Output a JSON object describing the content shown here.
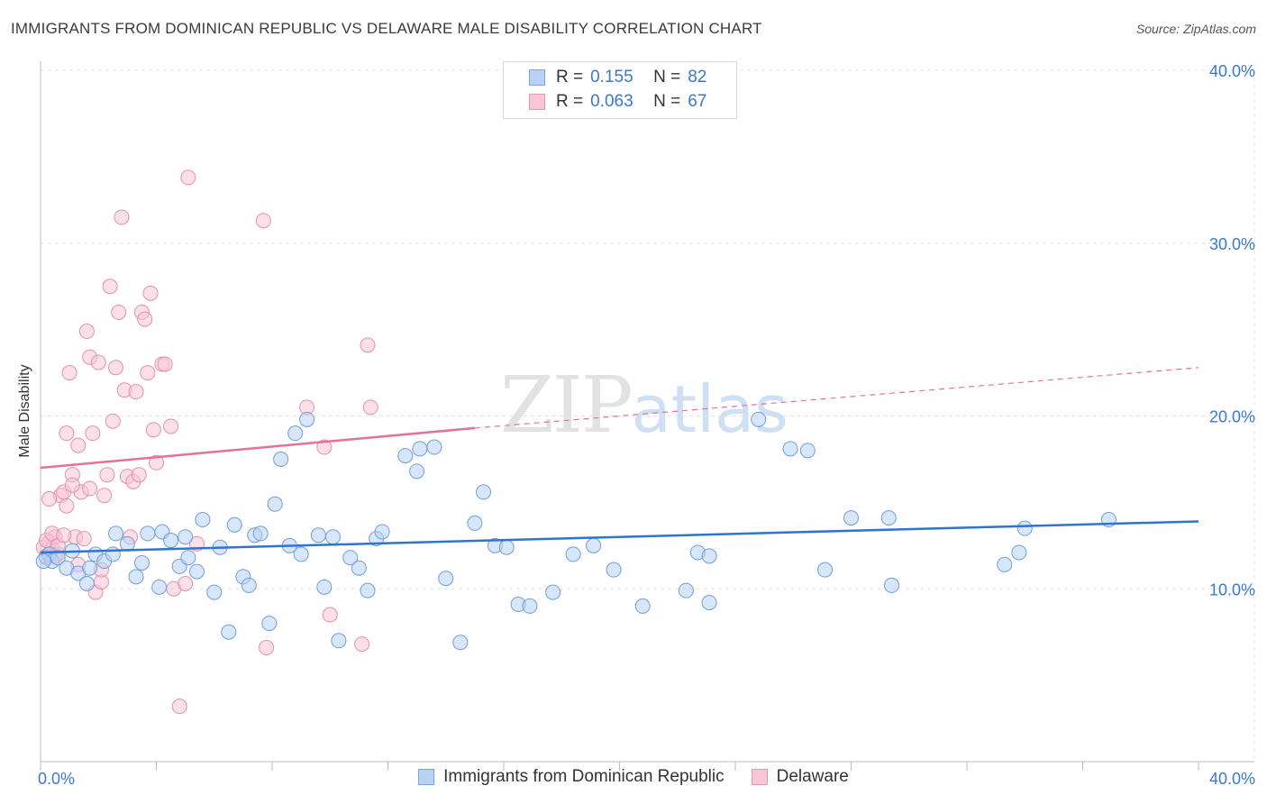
{
  "title": "IMMIGRANTS FROM DOMINICAN REPUBLIC VS DELAWARE MALE DISABILITY CORRELATION CHART",
  "source": "Source: ZipAtlas.com",
  "watermark": {
    "part1": "ZIP",
    "part2": "atlas"
  },
  "legend": {
    "rows": [
      {
        "r_label": "R =",
        "r_value": "0.155",
        "n_label": "N =",
        "n_value": "82"
      },
      {
        "r_label": "R =",
        "r_value": "0.063",
        "n_label": "N =",
        "n_value": "67"
      }
    ]
  },
  "bottom_legend": {
    "series1": "Immigrants from Dominican Republic",
    "series2": "Delaware"
  },
  "colors": {
    "blue_fill": "#b8d2f5",
    "blue_stroke": "#6f9ed8",
    "blue_line": "#2f74cf",
    "pink_fill": "#f8c6d6",
    "pink_stroke": "#e58fae",
    "pink_line": "#e5719a",
    "tick_text": "#3a78d0"
  },
  "chart_data": {
    "type": "scatter",
    "title": "IMMIGRANTS FROM DOMINICAN REPUBLIC VS DELAWARE MALE DISABILITY CORRELATION CHART",
    "xlabel": "",
    "ylabel": "Male Disability",
    "xlim": [
      0,
      40
    ],
    "ylim": [
      0,
      40
    ],
    "x_tick_labels": [
      "0.0%",
      "40.0%"
    ],
    "y_ticks": [
      10,
      20,
      30,
      40
    ],
    "y_tick_labels": [
      "10.0%",
      "20.0%",
      "30.0%",
      "40.0%"
    ],
    "series": [
      {
        "name": "Immigrants from Dominican Republic",
        "R": 0.155,
        "N": 82,
        "trend": {
          "x": [
            0,
            40
          ],
          "y": [
            12.1,
            13.9
          ],
          "style": "solid"
        },
        "points": [
          [
            0.2,
            11.8
          ],
          [
            0.3,
            12.0
          ],
          [
            0.4,
            11.6
          ],
          [
            0.6,
            11.8
          ],
          [
            0.9,
            11.2
          ],
          [
            1.1,
            12.2
          ],
          [
            1.3,
            10.9
          ],
          [
            1.6,
            10.3
          ],
          [
            1.7,
            11.2
          ],
          [
            1.9,
            12.0
          ],
          [
            2.2,
            11.6
          ],
          [
            2.5,
            12.0
          ],
          [
            2.6,
            13.2
          ],
          [
            3.0,
            12.6
          ],
          [
            3.3,
            10.7
          ],
          [
            3.5,
            11.5
          ],
          [
            3.7,
            13.2
          ],
          [
            4.1,
            10.1
          ],
          [
            4.2,
            13.3
          ],
          [
            4.5,
            12.8
          ],
          [
            4.8,
            11.3
          ],
          [
            5.0,
            13.0
          ],
          [
            5.1,
            11.8
          ],
          [
            5.4,
            11.0
          ],
          [
            5.6,
            14.0
          ],
          [
            6.0,
            9.8
          ],
          [
            6.2,
            12.4
          ],
          [
            6.5,
            7.5
          ],
          [
            6.7,
            13.7
          ],
          [
            7.0,
            10.7
          ],
          [
            7.2,
            10.2
          ],
          [
            7.4,
            13.1
          ],
          [
            7.6,
            13.2
          ],
          [
            7.9,
            8.0
          ],
          [
            8.1,
            14.9
          ],
          [
            8.3,
            17.5
          ],
          [
            8.6,
            12.5
          ],
          [
            8.8,
            19.0
          ],
          [
            9.0,
            12.0
          ],
          [
            9.2,
            19.8
          ],
          [
            9.6,
            13.1
          ],
          [
            9.8,
            10.1
          ],
          [
            10.1,
            13.0
          ],
          [
            10.3,
            7.0
          ],
          [
            10.7,
            11.8
          ],
          [
            11.0,
            11.2
          ],
          [
            11.3,
            9.9
          ],
          [
            11.6,
            12.9
          ],
          [
            11.8,
            13.3
          ],
          [
            12.6,
            17.7
          ],
          [
            13.0,
            16.8
          ],
          [
            13.1,
            18.1
          ],
          [
            13.6,
            18.2
          ],
          [
            14.0,
            10.6
          ],
          [
            14.5,
            6.9
          ],
          [
            15.0,
            13.8
          ],
          [
            15.3,
            15.6
          ],
          [
            15.7,
            12.5
          ],
          [
            16.1,
            12.4
          ],
          [
            16.5,
            9.1
          ],
          [
            16.9,
            9.0
          ],
          [
            17.7,
            9.8
          ],
          [
            18.4,
            12.0
          ],
          [
            19.1,
            12.5
          ],
          [
            19.8,
            11.1
          ],
          [
            20.8,
            9.0
          ],
          [
            22.3,
            9.9
          ],
          [
            22.7,
            12.1
          ],
          [
            23.1,
            11.9
          ],
          [
            23.1,
            9.2
          ],
          [
            24.8,
            19.8
          ],
          [
            25.9,
            18.1
          ],
          [
            26.5,
            18.0
          ],
          [
            27.1,
            11.1
          ],
          [
            28.0,
            14.1
          ],
          [
            29.3,
            14.1
          ],
          [
            29.4,
            10.2
          ],
          [
            33.3,
            11.4
          ],
          [
            33.8,
            12.1
          ],
          [
            34.0,
            13.5
          ],
          [
            36.9,
            14.0
          ],
          [
            0.1,
            11.6
          ]
        ]
      },
      {
        "name": "Delaware",
        "R": 0.063,
        "N": 67,
        "trend": {
          "x": [
            0,
            15
          ],
          "y": [
            17.0,
            19.3
          ],
          "style": "solid",
          "extension": {
            "x": [
              15,
              40
            ],
            "y": [
              19.3,
              22.8
            ],
            "style": "dashed"
          }
        },
        "points": [
          [
            0.1,
            12.4
          ],
          [
            0.2,
            11.9
          ],
          [
            0.3,
            12.7
          ],
          [
            0.4,
            12.3
          ],
          [
            0.5,
            13.0
          ],
          [
            0.6,
            12.0
          ],
          [
            0.7,
            15.4
          ],
          [
            0.8,
            15.6
          ],
          [
            0.9,
            14.8
          ],
          [
            0.9,
            19.0
          ],
          [
            1.0,
            22.5
          ],
          [
            1.1,
            16.6
          ],
          [
            1.2,
            13.0
          ],
          [
            1.3,
            18.3
          ],
          [
            1.4,
            15.6
          ],
          [
            1.5,
            12.9
          ],
          [
            1.6,
            24.9
          ],
          [
            1.7,
            23.4
          ],
          [
            1.8,
            19.0
          ],
          [
            1.9,
            9.8
          ],
          [
            2.0,
            23.1
          ],
          [
            2.1,
            10.4
          ],
          [
            2.2,
            15.4
          ],
          [
            2.3,
            16.6
          ],
          [
            2.4,
            27.5
          ],
          [
            2.5,
            19.7
          ],
          [
            2.6,
            22.8
          ],
          [
            2.7,
            26.0
          ],
          [
            2.8,
            31.5
          ],
          [
            2.9,
            21.5
          ],
          [
            3.0,
            16.5
          ],
          [
            3.1,
            13.0
          ],
          [
            3.2,
            16.2
          ],
          [
            3.3,
            21.4
          ],
          [
            3.4,
            16.6
          ],
          [
            3.5,
            26.0
          ],
          [
            3.6,
            25.6
          ],
          [
            3.7,
            22.5
          ],
          [
            3.8,
            27.1
          ],
          [
            3.9,
            19.2
          ],
          [
            4.0,
            17.3
          ],
          [
            4.2,
            23.0
          ],
          [
            4.3,
            23.0
          ],
          [
            4.5,
            19.4
          ],
          [
            4.6,
            10.0
          ],
          [
            4.8,
            3.2
          ],
          [
            5.0,
            10.3
          ],
          [
            5.1,
            33.8
          ],
          [
            5.4,
            12.6
          ],
          [
            7.7,
            31.3
          ],
          [
            7.8,
            6.6
          ],
          [
            9.2,
            20.5
          ],
          [
            9.8,
            18.2
          ],
          [
            10.0,
            8.5
          ],
          [
            11.1,
            6.8
          ],
          [
            11.3,
            24.1
          ],
          [
            11.4,
            20.5
          ],
          [
            0.2,
            12.8
          ],
          [
            0.4,
            13.2
          ],
          [
            0.5,
            11.9
          ],
          [
            1.3,
            11.4
          ],
          [
            1.7,
            15.8
          ],
          [
            2.1,
            11.1
          ],
          [
            0.6,
            12.5
          ],
          [
            0.8,
            13.1
          ],
          [
            1.1,
            16.0
          ],
          [
            0.3,
            15.2
          ]
        ]
      }
    ]
  }
}
